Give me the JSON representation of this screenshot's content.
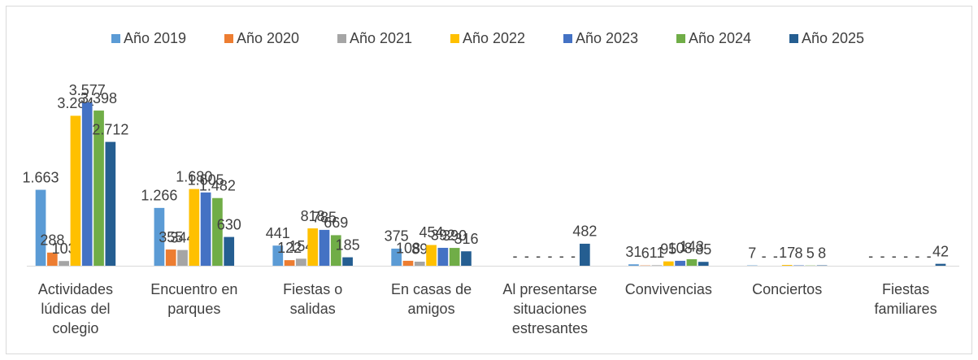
{
  "chart_data": {
    "type": "bar",
    "categories": [
      "Actividades lúdicas del colegio",
      "Encuentro en parques",
      "Fiestas o salidas",
      "En casas de amigos",
      "Al presentarse situaciones estresantes",
      "Convivencias",
      "Conciertos",
      "Fiestas familiares"
    ],
    "legend": "top",
    "series": [
      {
        "name": "Año 2019",
        "color": "#5b9bd5",
        "values": [
          1663,
          1266,
          441,
          375,
          0,
          31,
          7,
          0
        ],
        "value_labels": [
          "1.663",
          "1.266",
          "441",
          "375",
          "-",
          "31",
          "7",
          "-"
        ]
      },
      {
        "name": "Año 2020",
        "color": "#ed7d31",
        "values": [
          288,
          355,
          122,
          108,
          0,
          6,
          0,
          0
        ],
        "value_labels": [
          "288",
          "355",
          "122",
          "108",
          "-",
          "6",
          "-",
          "-"
        ]
      },
      {
        "name": "Año 2021",
        "color": "#a5a5a5",
        "values": [
          103,
          344,
          154,
          89,
          0,
          11,
          0,
          0
        ],
        "value_labels": [
          "103",
          "344",
          "154",
          "89",
          "-",
          "11",
          "-",
          "-"
        ]
      },
      {
        "name": "Año 2022",
        "color": "#ffc000",
        "values": [
          3284,
          1680,
          818,
          454,
          0,
          95,
          17,
          0
        ],
        "value_labels": [
          "3.284",
          "1.680",
          "818",
          "454",
          "-",
          "95",
          "17",
          "-"
        ]
      },
      {
        "name": "Año 2023",
        "color": "#4472c4",
        "values": [
          3577,
          1605,
          785,
          392,
          0,
          108,
          8,
          0
        ],
        "value_labels": [
          "3.577",
          "1.605",
          "785",
          "392",
          "-",
          "108",
          "8",
          "-"
        ]
      },
      {
        "name": "Año 2024",
        "color": "#70ad47",
        "values": [
          3398,
          1482,
          669,
          390,
          0,
          143,
          5,
          0
        ],
        "value_labels": [
          "3.398",
          "1.482",
          "669",
          "390",
          "-",
          "143",
          "5",
          "-"
        ]
      },
      {
        "name": "Año 2025",
        "color": "#255e91",
        "values": [
          2712,
          630,
          185,
          316,
          482,
          85,
          8,
          42
        ],
        "value_labels": [
          "2.712",
          "630",
          "185",
          "316",
          "482",
          "85",
          "8",
          "42"
        ]
      }
    ]
  }
}
